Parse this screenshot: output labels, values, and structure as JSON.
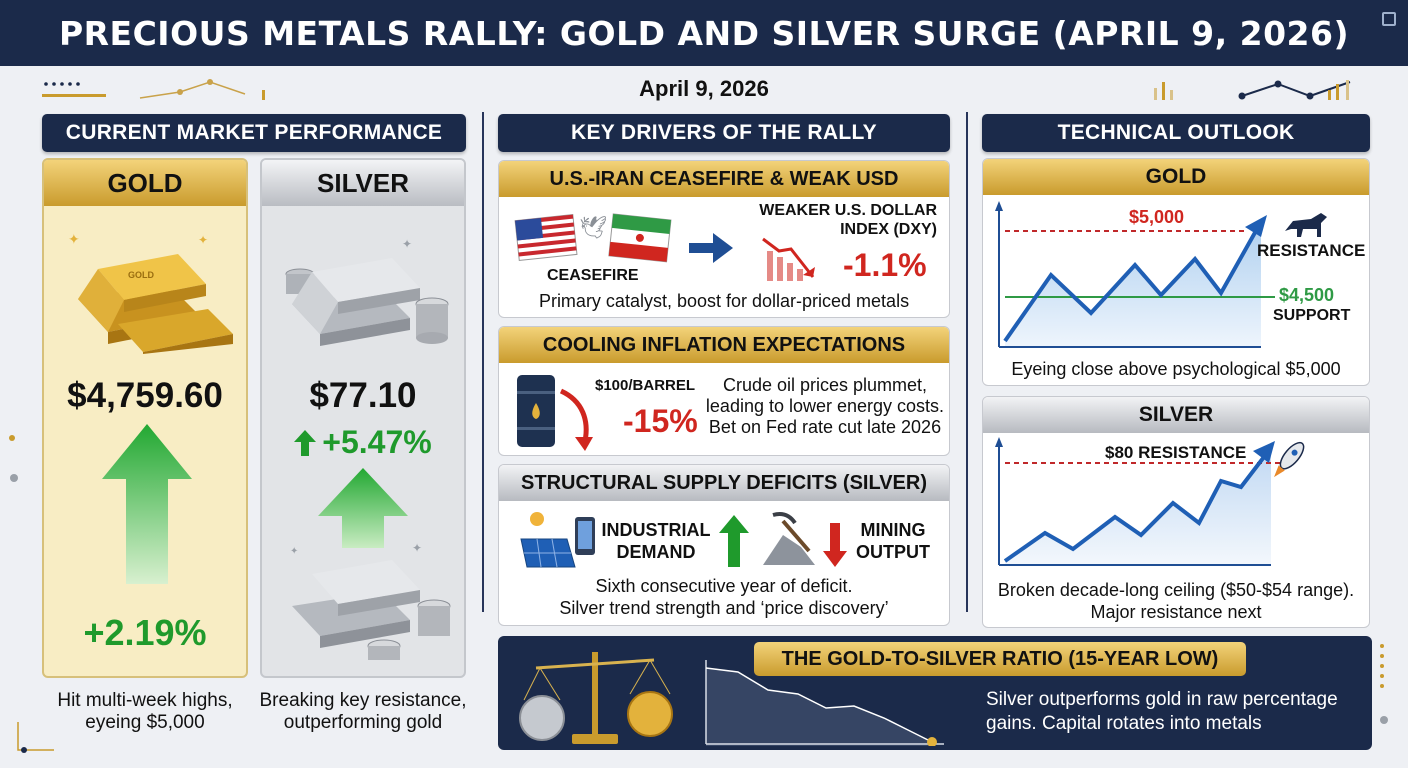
{
  "title": "PRECIOUS METALS RALLY: GOLD AND SILVER SURGE (APRIL 9, 2026)",
  "date": "April 9, 2026",
  "colors": {
    "navy": "#1b2a4a",
    "gold": "#c99b2d",
    "green": "#1f9a2c",
    "red": "#d0261f",
    "blue": "#1f5fb5"
  },
  "market": {
    "header": "CURRENT MARKET PERFORMANCE",
    "gold": {
      "name": "GOLD",
      "price": "$4,759.60",
      "change": "+2.19%",
      "caption_line1": "Hit multi-week highs,",
      "caption_line2": "eyeing $5,000"
    },
    "silver": {
      "name": "SILVER",
      "price": "$77.10",
      "change": "+5.47%",
      "caption_line1": "Breaking key resistance,",
      "caption_line2": "outperforming gold"
    }
  },
  "drivers": {
    "header": "KEY DRIVERS OF THE RALLY",
    "ceasefire": {
      "title": "U.S.-IRAN CEASEFIRE & WEAK USD",
      "ceasefire_label": "CEASEFIRE",
      "dxy_line1": "WEAKER U.S. DOLLAR",
      "dxy_line2": "INDEX (DXY)",
      "dxy_change": "-1.1%",
      "note": "Primary catalyst, boost for dollar-priced metals"
    },
    "inflation": {
      "title": "COOLING INFLATION EXPECTATIONS",
      "oil_price": "$100/BARREL",
      "oil_change": "-15%",
      "line1": "Crude oil prices plummet,",
      "line2": "leading to lower energy costs.",
      "line3": "Bet on Fed rate cut late 2026"
    },
    "supply": {
      "title": "STRUCTURAL SUPPLY DEFICITS (SILVER)",
      "industrial_line1": "INDUSTRIAL",
      "industrial_line2": "DEMAND",
      "mining_line1": "MINING",
      "mining_line2": "OUTPUT",
      "note_line1": "Sixth consecutive year of deficit.",
      "note_line2": "Silver trend strength and ‘price discovery’"
    }
  },
  "technical": {
    "header": "TECHNICAL OUTLOOK",
    "gold": {
      "name": "GOLD",
      "resistance_value": "$5,000",
      "resistance_label": "RESISTANCE",
      "support_value": "$4,500",
      "support_label": "SUPPORT",
      "note": "Eyeing close above psychological $5,000"
    },
    "silver": {
      "name": "SILVER",
      "resistance_label": "$80 RESISTANCE",
      "note_line1": "Broken decade-long ceiling ($50-$54 range).",
      "note_line2": "Major resistance next"
    }
  },
  "ratio": {
    "title": "THE GOLD-TO-SILVER RATIO (15-YEAR LOW)",
    "text_line1": "Silver outperforms gold in raw percentage",
    "text_line2": "gains. Capital rotates into metals"
  }
}
